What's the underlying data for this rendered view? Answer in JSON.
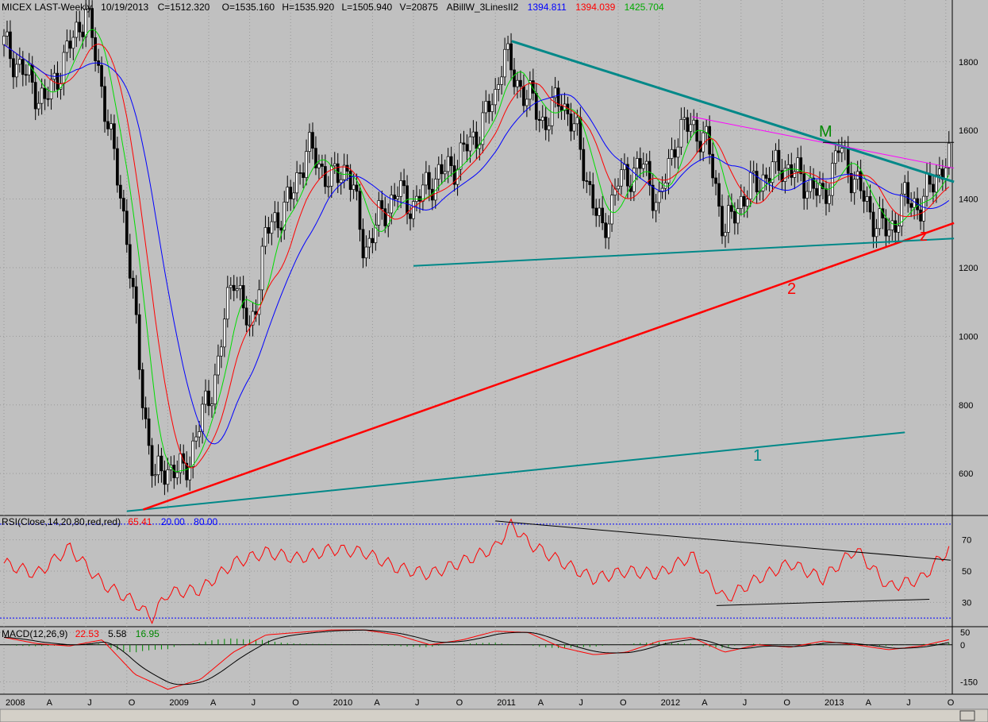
{
  "header": {
    "symbol": "MICEX LAST-Weekly",
    "date": "10/19/2013",
    "close": "C=1512.320",
    "open": "O=1535.160",
    "high": "H=1535.920",
    "low": "L=1505.940",
    "volume": "V=20875",
    "indicator": "ABillW_3LinesII2",
    "ind_values": [
      "1394.811",
      "1394.039",
      "1425.704"
    ]
  },
  "rsi": {
    "label": "RSI(Close,14,20,80,red,red)",
    "values": [
      "65.41",
      "20.00",
      "80.00"
    ]
  },
  "macd": {
    "label": "MACD(12,26,9)",
    "values": [
      "22.53",
      "5.58",
      "16.95"
    ]
  },
  "colors": {
    "background": "#c0c0c0",
    "candles": "#000000",
    "ma_fast": "#00dd00",
    "ma_mid": "#ff0000",
    "ma_slow": "#0000ff",
    "trendline_teal": "#008888",
    "trendline_red": "#ff0000",
    "trendline_magenta": "#ff00ff",
    "annotation_green": "#008800"
  },
  "annotations": {
    "m": "M",
    "one": "1",
    "two": "2",
    "z": "z"
  },
  "chart_data": [
    {
      "type": "candlestick",
      "title": "MICEX LAST-Weekly",
      "x_ticks": [
        "2008",
        "A",
        "J",
        "O",
        "2009",
        "A",
        "J",
        "O",
        "2010",
        "A",
        "J",
        "O",
        "2011",
        "A",
        "J",
        "O",
        "2012",
        "A",
        "J",
        "O",
        "2013",
        "A",
        "J",
        "O"
      ],
      "y_ticks": [
        600,
        800,
        1000,
        1200,
        1400,
        1600,
        1800
      ],
      "ylim": [
        480,
        1980
      ],
      "grid": true,
      "series": [
        {
          "x": [
            2008.0,
            2008.25,
            2008.5,
            2008.6,
            2008.75,
            2008.85,
            2008.92,
            2009.0,
            2009.1,
            2009.2,
            2009.3,
            2009.4,
            2009.5,
            2009.6,
            2009.75,
            2009.85,
            2010.0,
            2010.1,
            2010.2,
            2010.3,
            2010.4,
            2010.5,
            2010.6,
            2010.75,
            2010.9,
            2011.0,
            2011.05,
            2011.1,
            2011.2,
            2011.3,
            2011.4,
            2011.5,
            2011.6,
            2011.65,
            2011.75,
            2011.9,
            2012.0,
            2012.1,
            2012.2,
            2012.3,
            2012.4,
            2012.5,
            2012.6,
            2012.75,
            2012.9,
            2013.0,
            2013.1,
            2013.2,
            2013.3,
            2013.4,
            2013.5,
            2013.6,
            2013.7,
            2013.78
          ],
          "close": [
            1850,
            1680,
            1950,
            1720,
            1300,
            800,
            580,
            620,
            600,
            750,
            900,
            1200,
            1000,
            1300,
            1400,
            1550,
            1450,
            1500,
            1250,
            1350,
            1420,
            1380,
            1450,
            1500,
            1600,
            1700,
            1840,
            1760,
            1700,
            1620,
            1700,
            1580,
            1380,
            1300,
            1450,
            1500,
            1380,
            1580,
            1620,
            1550,
            1300,
            1400,
            1450,
            1500,
            1450,
            1400,
            1550,
            1450,
            1350,
            1300,
            1400,
            1380,
            1480,
            1512
          ]
        },
        {
          "name": "",
          "values": []
        }
      ],
      "trendlines": [
        {
          "from": [
            2008.75,
            490
          ],
          "to": [
            2013.5,
            720
          ]
        },
        {
          "from": [
            2008.85,
            495
          ],
          "to": [
            2013.8,
            1330
          ]
        },
        {
          "from": [
            2011.1,
            1860
          ],
          "to": [
            2013.8,
            1450
          ]
        },
        {
          "from": [
            2010.5,
            1205
          ],
          "to": [
            2013.8,
            1285
          ]
        },
        {
          "from": [
            2012.2,
            1640
          ],
          "to": [
            2013.8,
            1490
          ]
        },
        {
          "from": [
            2013.0,
            1565
          ],
          "to": [
            2013.8,
            1565
          ]
        }
      ]
    },
    {
      "type": "line",
      "title": "RSI(Close,14,20,80,red,red)",
      "y_ticks": [
        30,
        50,
        70
      ],
      "ylim": [
        15,
        85
      ],
      "series": [
        {
          "x": [
            2008.0,
            2008.2,
            2008.4,
            2008.6,
            2008.8,
            2008.9,
            2009.0,
            2009.2,
            2009.4,
            2009.6,
            2009.8,
            2010.0,
            2010.2,
            2010.4,
            2010.6,
            2010.8,
            2011.0,
            2011.1,
            2011.2,
            2011.4,
            2011.6,
            2011.8,
            2012.0,
            2012.2,
            2012.4,
            2012.6,
            2012.8,
            2013.0,
            2013.2,
            2013.4,
            2013.6,
            2013.78
          ],
          "values": [
            55,
            48,
            65,
            42,
            30,
            20,
            36,
            38,
            55,
            62,
            58,
            64,
            62,
            52,
            48,
            56,
            65,
            80,
            68,
            56,
            45,
            50,
            48,
            60,
            32,
            45,
            55,
            45,
            64,
            40,
            45,
            65.41
          ]
        }
      ]
    },
    {
      "type": "line",
      "title": "MACD(12,26,9)",
      "y_ticks": [
        -150,
        0,
        50
      ],
      "ylim": [
        -200,
        70
      ],
      "series": [
        {
          "x": [
            2008.0,
            2008.2,
            2008.4,
            2008.6,
            2008.8,
            2009.0,
            2009.2,
            2009.4,
            2009.6,
            2009.8,
            2010.0,
            2010.2,
            2010.4,
            2010.6,
            2010.8,
            2011.0,
            2011.2,
            2011.4,
            2011.6,
            2011.8,
            2012.0,
            2012.2,
            2012.4,
            2012.6,
            2012.8,
            2013.0,
            2013.2,
            2013.4,
            2013.6,
            2013.78
          ],
          "values": [
            30,
            5,
            -5,
            20,
            -120,
            -180,
            -140,
            -30,
            40,
            50,
            60,
            60,
            40,
            0,
            20,
            55,
            50,
            -10,
            -40,
            -30,
            15,
            30,
            -30,
            0,
            -10,
            15,
            0,
            -20,
            -5,
            22.53
          ]
        }
      ]
    }
  ]
}
